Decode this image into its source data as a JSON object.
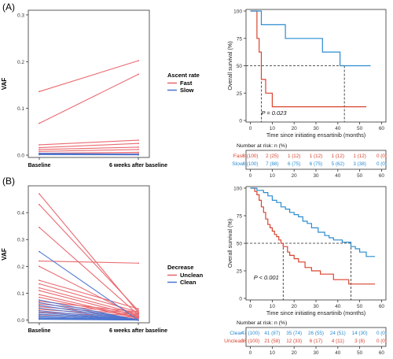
{
  "panels": [
    {
      "label": "(A)"
    },
    {
      "label": "(B)"
    }
  ],
  "chart_data": [
    {
      "type": "line",
      "panel": "A-left",
      "ylabel": "VAF",
      "xlabel": "",
      "categories": [
        "Baseline",
        "6 weeks after baseline"
      ],
      "yticks": [
        "0.0",
        "0.1",
        "0.2",
        "0.3"
      ],
      "ylim": [
        -0.005,
        0.31
      ],
      "legend": {
        "title": "Ascent rate",
        "items": [
          "Fast",
          "Slow"
        ],
        "colors": [
          "#E8636A",
          "#4A74D0"
        ],
        "placement": "right"
      },
      "series": [
        {
          "group": "Fast",
          "values": [
            0.136,
            0.202
          ]
        },
        {
          "group": "Fast",
          "values": [
            0.068,
            0.173
          ]
        },
        {
          "group": "Fast",
          "values": [
            0.022,
            0.032
          ]
        },
        {
          "group": "Fast",
          "values": [
            0.016,
            0.025
          ]
        },
        {
          "group": "Fast",
          "values": [
            0.012,
            0.017
          ]
        },
        {
          "group": "Fast",
          "values": [
            0.008,
            0.012
          ]
        },
        {
          "group": "Fast",
          "values": [
            0.004,
            0.006
          ]
        },
        {
          "group": "Fast",
          "values": [
            0.002,
            0.003
          ]
        },
        {
          "group": "Slow",
          "values": [
            0.004,
            0.002
          ]
        },
        {
          "group": "Slow",
          "values": [
            0.002,
            0.001
          ]
        },
        {
          "group": "Slow",
          "values": [
            0.001,
            0.0005
          ]
        }
      ]
    },
    {
      "type": "line",
      "panel": "A-right",
      "subtype": "kaplan-meier",
      "ylabel": "Overall survival (%)",
      "xlabel": "Time since initiating ensartinib (months)",
      "xticks": [
        0,
        10,
        20,
        30,
        40,
        50,
        60
      ],
      "yticks": [
        0,
        25,
        50,
        75,
        100
      ],
      "xlim": [
        -2,
        62
      ],
      "ylim": [
        0,
        100
      ],
      "annotation": "P = 0.023",
      "medians": [
        5,
        43
      ],
      "series": [
        {
          "name": "Fast",
          "color": "#D9442F",
          "x": [
            0,
            3,
            3,
            4,
            4,
            5,
            5,
            7,
            7,
            10,
            10,
            53
          ],
          "y": [
            100,
            100,
            75,
            75,
            62.5,
            62.5,
            37.5,
            37.5,
            25,
            25,
            12.5,
            12.5
          ]
        },
        {
          "name": "Slow",
          "color": "#2A8CD0",
          "x": [
            0,
            5,
            5,
            16,
            16,
            33,
            33,
            41,
            41,
            55
          ],
          "y": [
            100,
            100,
            87.5,
            87.5,
            75,
            75,
            62.5,
            62.5,
            50,
            50
          ]
        }
      ],
      "risk_table": {
        "title": "Number at risk: n (%)",
        "xticks": [
          0,
          10,
          20,
          30,
          40,
          50,
          60
        ],
        "rows": [
          {
            "name": "Fast",
            "color": "#D9442F",
            "cells": [
              "8 (100)",
              "2 (25)",
              "1 (12)",
              "1 (12)",
              "1 (12)",
              "1 (12)",
              "0 (0)"
            ]
          },
          {
            "name": "Slow",
            "color": "#2A8CD0",
            "cells": [
              "8 (100)",
              "7 (88)",
              "6 (75)",
              "6 (75)",
              "5 (62)",
              "3 (38)",
              "0 (0)"
            ]
          }
        ]
      }
    },
    {
      "type": "line",
      "panel": "B-left",
      "ylabel": "VAF",
      "xlabel": "",
      "categories": [
        "Baseline",
        "6 weeks after baseline"
      ],
      "yticks": [
        "0.0",
        "0.1",
        "0.2",
        "0.3",
        "0.4"
      ],
      "ylim": [
        -0.01,
        0.5
      ],
      "legend": {
        "title": "Decrease",
        "items": [
          "Unclean",
          "Clean"
        ],
        "colors": [
          "#E8636A",
          "#4A74D0"
        ],
        "placement": "right"
      },
      "series": [
        {
          "group": "Unclean",
          "values": [
            0.47,
            0.028
          ]
        },
        {
          "group": "Unclean",
          "values": [
            0.43,
            0.035
          ]
        },
        {
          "group": "Unclean",
          "values": [
            0.345,
            0.02
          ]
        },
        {
          "group": "Unclean",
          "values": [
            0.22,
            0.212
          ]
        },
        {
          "group": "Unclean",
          "values": [
            0.2,
            0.012
          ]
        },
        {
          "group": "Unclean",
          "values": [
            0.148,
            0.042
          ]
        },
        {
          "group": "Unclean",
          "values": [
            0.135,
            0.03
          ]
        },
        {
          "group": "Unclean",
          "values": [
            0.12,
            0.022
          ]
        },
        {
          "group": "Unclean",
          "values": [
            0.11,
            0.015
          ]
        },
        {
          "group": "Unclean",
          "values": [
            0.095,
            0.01
          ]
        },
        {
          "group": "Unclean",
          "values": [
            0.085,
            0.008
          ]
        },
        {
          "group": "Unclean",
          "values": [
            0.07,
            0.03
          ]
        },
        {
          "group": "Unclean",
          "values": [
            0.06,
            0.025
          ]
        },
        {
          "group": "Unclean",
          "values": [
            0.05,
            0.02
          ]
        },
        {
          "group": "Unclean",
          "values": [
            0.04,
            0.015
          ]
        },
        {
          "group": "Unclean",
          "values": [
            0.03,
            0.01
          ]
        },
        {
          "group": "Unclean",
          "values": [
            0.02,
            0.006
          ]
        },
        {
          "group": "Clean",
          "values": [
            0.255,
            0.0
          ]
        },
        {
          "group": "Clean",
          "values": [
            0.075,
            0.0
          ]
        },
        {
          "group": "Clean",
          "values": [
            0.065,
            0.0
          ]
        },
        {
          "group": "Clean",
          "values": [
            0.055,
            0.0
          ]
        },
        {
          "group": "Clean",
          "values": [
            0.045,
            0.0
          ]
        },
        {
          "group": "Clean",
          "values": [
            0.035,
            0.0
          ]
        },
        {
          "group": "Clean",
          "values": [
            0.028,
            0.0
          ]
        },
        {
          "group": "Clean",
          "values": [
            0.022,
            0.0
          ]
        },
        {
          "group": "Clean",
          "values": [
            0.016,
            0.0
          ]
        },
        {
          "group": "Clean",
          "values": [
            0.012,
            0.0
          ]
        },
        {
          "group": "Clean",
          "values": [
            0.008,
            0.0
          ]
        },
        {
          "group": "Clean",
          "values": [
            0.005,
            0.0
          ]
        },
        {
          "group": "Clean",
          "values": [
            0.003,
            0.0
          ]
        }
      ]
    },
    {
      "type": "line",
      "panel": "B-right",
      "subtype": "kaplan-meier",
      "ylabel": "Overall survival (%)",
      "xlabel": "Time since initiating ensartinib (months)",
      "xticks": [
        0,
        10,
        20,
        30,
        40,
        50,
        60
      ],
      "yticks": [
        0,
        25,
        50,
        75,
        100
      ],
      "xlim": [
        -2,
        62
      ],
      "ylim": [
        0,
        100
      ],
      "annotation": "P < 0.001",
      "medians": [
        15,
        46
      ],
      "series": [
        {
          "name": "Unclean",
          "color": "#D9442F",
          "x": [
            0,
            2,
            2,
            3,
            3,
            4,
            4,
            5,
            5,
            6,
            6,
            7,
            7,
            8,
            8,
            9,
            9,
            10,
            10,
            11,
            11,
            12,
            12,
            13,
            13,
            14,
            14,
            15,
            15,
            17,
            17,
            18,
            18,
            20,
            20,
            22,
            22,
            25,
            25,
            28,
            28,
            32,
            32,
            38,
            38,
            45,
            45,
            57
          ],
          "y": [
            100,
            100,
            97,
            97,
            94,
            94,
            89,
            89,
            83,
            83,
            78,
            78,
            72,
            72,
            67,
            67,
            64,
            64,
            61,
            61,
            58,
            58,
            56,
            56,
            53,
            53,
            50,
            50,
            47,
            47,
            42,
            42,
            39,
            39,
            36,
            36,
            33,
            33,
            28,
            28,
            25,
            25,
            22,
            22,
            17,
            17,
            13,
            13
          ]
        },
        {
          "name": "Clean",
          "color": "#2A8CD0",
          "x": [
            0,
            3,
            3,
            6,
            6,
            8,
            8,
            10,
            10,
            12,
            12,
            14,
            14,
            16,
            16,
            18,
            18,
            20,
            20,
            22,
            22,
            24,
            24,
            26,
            26,
            28,
            28,
            31,
            31,
            34,
            34,
            36,
            36,
            38,
            38,
            42,
            42,
            46,
            46,
            48,
            48,
            50,
            50,
            53,
            53,
            57
          ],
          "y": [
            100,
            100,
            98,
            98,
            96,
            96,
            93,
            93,
            89,
            89,
            87,
            87,
            83,
            83,
            81,
            81,
            78,
            78,
            76,
            76,
            74,
            74,
            70,
            70,
            68,
            68,
            64,
            64,
            60,
            60,
            57,
            57,
            55,
            55,
            53,
            53,
            51,
            51,
            47,
            47,
            45,
            45,
            42,
            42,
            38,
            38
          ]
        }
      ],
      "risk_table": {
        "title": "Number at risk: n (%)",
        "xticks": [
          0,
          10,
          20,
          30,
          40,
          50,
          60
        ],
        "rows": [
          {
            "name": "Clean",
            "color": "#2A8CD0",
            "cells": [
              "47 (100)",
              "41 (87)",
              "35 (74)",
              "26 (55)",
              "24 (51)",
              "14 (30)",
              "0 (0)"
            ]
          },
          {
            "name": "Unclean",
            "color": "#D9442F",
            "cells": [
              "36 (100)",
              "21 (58)",
              "12 (33)",
              "6 (17)",
              "4 (11)",
              "3 (8)",
              "0 (0)"
            ]
          }
        ]
      }
    }
  ]
}
